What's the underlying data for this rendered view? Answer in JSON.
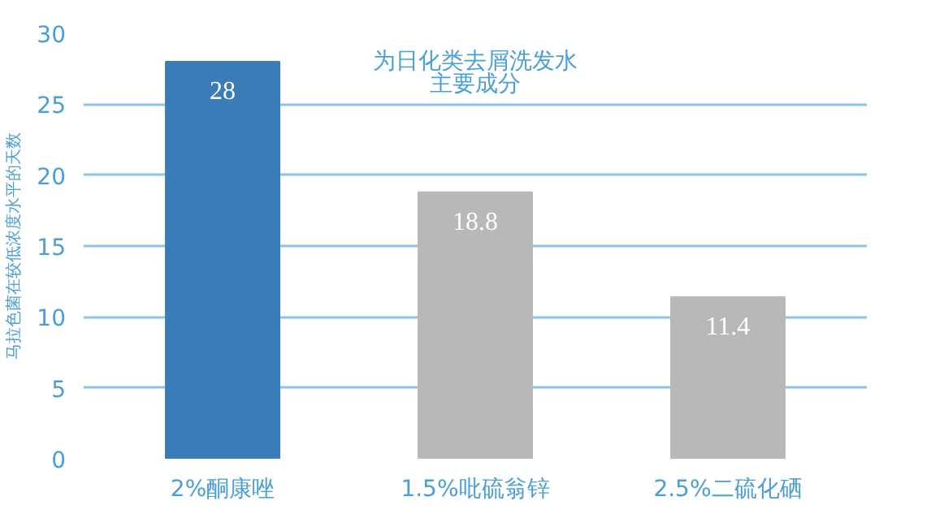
{
  "chart_data": {
    "type": "bar",
    "categories": [
      "2%酮康唑",
      "1.5%吡硫翁锌",
      "2.5%二硫化硒"
    ],
    "values": [
      28,
      18.8,
      11.4
    ],
    "colors": [
      "#3a7cb8",
      "#b8b8b8",
      "#b8b8b8"
    ],
    "ylabel": "马拉色菌在较低浓度水平的天数",
    "annotations": [
      "为日化类去屑洗发水",
      "主要成分"
    ],
    "ylim": [
      0,
      30
    ],
    "yticks": [
      0,
      5,
      10,
      15,
      20,
      25,
      30
    ],
    "grid": "y",
    "data_labels": true
  }
}
